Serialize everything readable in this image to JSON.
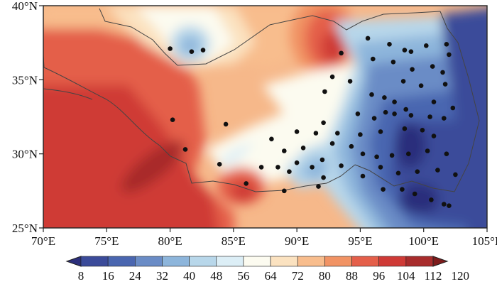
{
  "map": {
    "lon_range": [
      70,
      105
    ],
    "lat_range": [
      25,
      40
    ],
    "x_ticks": [
      {
        "value": 70,
        "label": "70°E"
      },
      {
        "value": 75,
        "label": "75°E"
      },
      {
        "value": 80,
        "label": "80°E"
      },
      {
        "value": 85,
        "label": "85°E"
      },
      {
        "value": 90,
        "label": "90°E"
      },
      {
        "value": 95,
        "label": "95°E"
      },
      {
        "value": 100,
        "label": "100°E"
      },
      {
        "value": 105,
        "label": "105°E"
      }
    ],
    "y_ticks": [
      {
        "value": 25,
        "label": "25°N"
      },
      {
        "value": 30,
        "label": "30°N"
      },
      {
        "value": 35,
        "label": "35°N"
      },
      {
        "value": 40,
        "label": "40°N"
      }
    ]
  },
  "colorbar": {
    "labels": [
      "8",
      "16",
      "24",
      "32",
      "40",
      "48",
      "56",
      "64",
      "72",
      "80",
      "88",
      "96",
      "104",
      "112",
      "120"
    ],
    "colors": [
      "#2c2f7c",
      "#3b4b9a",
      "#4a66b0",
      "#6a8cc6",
      "#8db5db",
      "#b8d7ea",
      "#dceef6",
      "#fcfbf0",
      "#fbe2c0",
      "#f8bd8d",
      "#f19364",
      "#e45f4a",
      "#cf3a36",
      "#a82c2c",
      "#7e1c1c"
    ]
  },
  "stations": [
    [
      80.0,
      37.1
    ],
    [
      81.7,
      36.9
    ],
    [
      82.6,
      37.0
    ],
    [
      93.5,
      36.8
    ],
    [
      95.6,
      37.8
    ],
    [
      96.0,
      36.4
    ],
    [
      97.3,
      37.4
    ],
    [
      98.5,
      37.0
    ],
    [
      99.0,
      36.9
    ],
    [
      100.2,
      37.3
    ],
    [
      101.8,
      37.4
    ],
    [
      102.0,
      36.7
    ],
    [
      92.8,
      35.2
    ],
    [
      92.2,
      34.2
    ],
    [
      94.2,
      34.9
    ],
    [
      97.6,
      36.2
    ],
    [
      98.4,
      34.9
    ],
    [
      99.1,
      35.7
    ],
    [
      100.7,
      35.9
    ],
    [
      101.5,
      35.5
    ],
    [
      99.8,
      34.6
    ],
    [
      101.7,
      34.7
    ],
    [
      95.9,
      34.0
    ],
    [
      96.9,
      33.8
    ],
    [
      97.7,
      33.5
    ],
    [
      98.6,
      33.0
    ],
    [
      100.8,
      33.5
    ],
    [
      102.3,
      33.1
    ],
    [
      92.1,
      32.1
    ],
    [
      94.8,
      32.7
    ],
    [
      96.1,
      32.4
    ],
    [
      97.0,
      32.8
    ],
    [
      97.7,
      32.7
    ],
    [
      99.0,
      32.6
    ],
    [
      100.5,
      32.5
    ],
    [
      101.6,
      32.4
    ],
    [
      90.0,
      31.5
    ],
    [
      91.5,
      31.4
    ],
    [
      93.2,
      31.4
    ],
    [
      95.0,
      31.3
    ],
    [
      96.6,
      31.5
    ],
    [
      98.5,
      31.7
    ],
    [
      99.9,
      31.6
    ],
    [
      100.8,
      31.2
    ],
    [
      88.0,
      31.0
    ],
    [
      89.0,
      30.2
    ],
    [
      90.5,
      30.4
    ],
    [
      92.8,
      30.7
    ],
    [
      94.3,
      30.5
    ],
    [
      95.2,
      30.0
    ],
    [
      96.3,
      29.8
    ],
    [
      97.5,
      29.9
    ],
    [
      98.8,
      30.0
    ],
    [
      100.3,
      30.2
    ],
    [
      101.8,
      30.0
    ],
    [
      87.2,
      29.1
    ],
    [
      88.5,
      29.1
    ],
    [
      89.4,
      28.8
    ],
    [
      90.0,
      29.4
    ],
    [
      91.2,
      29.1
    ],
    [
      92.0,
      29.6
    ],
    [
      93.5,
      29.2
    ],
    [
      95.2,
      28.5
    ],
    [
      96.6,
      29.1
    ],
    [
      98.0,
      28.7
    ],
    [
      99.5,
      28.8
    ],
    [
      101.1,
      28.9
    ],
    [
      102.5,
      28.6
    ],
    [
      89.0,
      27.5
    ],
    [
      91.7,
      27.8
    ],
    [
      92.1,
      28.4
    ],
    [
      96.8,
      27.6
    ],
    [
      98.3,
      27.6
    ],
    [
      99.3,
      27.3
    ],
    [
      100.6,
      26.9
    ],
    [
      101.6,
      26.6
    ],
    [
      102.0,
      26.5
    ],
    [
      80.2,
      32.3
    ],
    [
      84.4,
      32.0
    ],
    [
      81.2,
      30.3
    ],
    [
      83.9,
      29.3
    ],
    [
      86.0,
      28.0
    ]
  ]
}
